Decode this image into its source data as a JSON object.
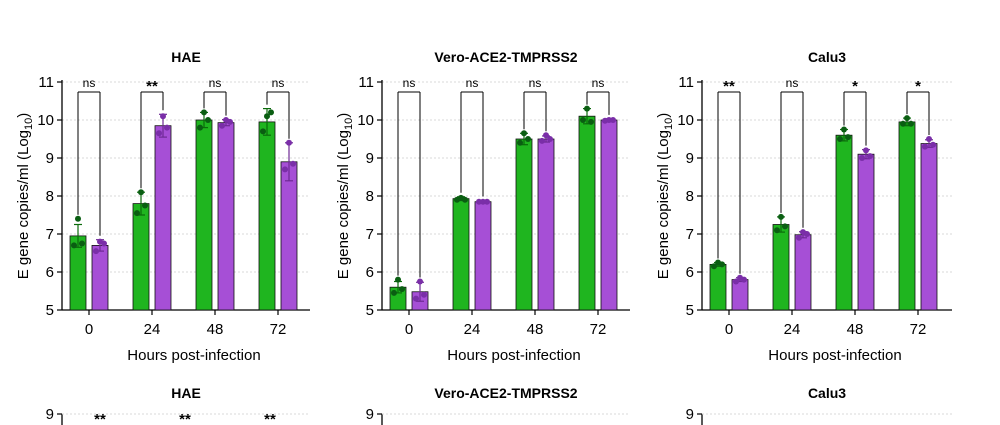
{
  "chart_data": [
    {
      "type": "bar",
      "title": "HAE",
      "xlabel": "Hours post-infection",
      "ylabel": "E gene copies/ml (Log10)",
      "ylim": [
        5,
        11
      ],
      "yticks": [
        "5",
        "6",
        "7",
        "8",
        "9",
        "10",
        "11"
      ],
      "grid": true,
      "categories": [
        "0",
        "24",
        "48",
        "72"
      ],
      "colors": [
        "#1fb51f",
        "#a64fd6"
      ],
      "series": [
        {
          "values": [
            6.95,
            7.8,
            10.0,
            9.95
          ],
          "errors": [
            0.3,
            0.3,
            0.2,
            0.35
          ],
          "points": [
            [
              6.7,
              7.4,
              6.75
            ],
            [
              7.55,
              8.1,
              7.75
            ],
            [
              9.8,
              10.2,
              10.0
            ],
            [
              9.7,
              10.1,
              10.2
            ]
          ]
        },
        {
          "values": [
            6.7,
            9.85,
            9.93,
            8.9
          ],
          "errors": [
            0.15,
            0.3,
            0.08,
            0.5
          ],
          "points": [
            [
              6.55,
              6.8,
              6.75
            ],
            [
              9.65,
              10.1,
              9.8
            ],
            [
              9.85,
              10.0,
              9.95
            ],
            [
              8.7,
              9.4,
              8.85
            ]
          ]
        }
      ],
      "significance": [
        "ns",
        "**",
        "ns",
        "ns"
      ]
    },
    {
      "type": "bar",
      "title": "Vero-ACE2-TMPRSS2",
      "xlabel": "Hours post-infection",
      "ylabel": "E gene copies/ml (Log10)",
      "ylim": [
        5,
        11
      ],
      "yticks": [
        "5",
        "6",
        "7",
        "8",
        "9",
        "10",
        "11"
      ],
      "grid": true,
      "categories": [
        "0",
        "24",
        "48",
        "72"
      ],
      "colors": [
        "#1fb51f",
        "#a64fd6"
      ],
      "series": [
        {
          "values": [
            5.6,
            7.93,
            9.5,
            10.1
          ],
          "errors": [
            0.15,
            0.05,
            0.15,
            0.2
          ],
          "points": [
            [
              5.45,
              5.8,
              5.55
            ],
            [
              7.9,
              7.95,
              7.9
            ],
            [
              9.4,
              9.65,
              9.5
            ],
            [
              10.0,
              10.3,
              9.95
            ]
          ]
        },
        {
          "values": [
            5.48,
            7.85,
            9.5,
            10.0
          ],
          "errors": [
            0.25,
            0.03,
            0.08,
            0.03
          ],
          "points": [
            [
              5.3,
              5.75,
              5.4
            ],
            [
              7.85,
              7.85,
              7.85
            ],
            [
              9.45,
              9.6,
              9.5
            ],
            [
              9.98,
              10.0,
              10.0
            ]
          ]
        }
      ],
      "significance": [
        "ns",
        "ns",
        "ns",
        "ns"
      ]
    },
    {
      "type": "bar",
      "title": "Calu3",
      "xlabel": "Hours post-infection",
      "ylabel": "E gene copies/ml (Log10)",
      "ylim": [
        5,
        11
      ],
      "yticks": [
        "5",
        "6",
        "7",
        "8",
        "9",
        "10",
        "11"
      ],
      "grid": true,
      "categories": [
        "0",
        "24",
        "48",
        "72"
      ],
      "colors": [
        "#1fb51f",
        "#a64fd6"
      ],
      "series": [
        {
          "values": [
            6.2,
            7.25,
            9.6,
            9.95
          ],
          "errors": [
            0.05,
            0.2,
            0.15,
            0.1
          ],
          "points": [
            [
              6.15,
              6.25,
              6.2
            ],
            [
              7.1,
              7.45,
              7.2
            ],
            [
              9.5,
              9.75,
              9.55
            ],
            [
              9.9,
              10.05,
              9.9
            ]
          ]
        },
        {
          "values": [
            5.8,
            6.98,
            9.1,
            9.38
          ],
          "errors": [
            0.05,
            0.08,
            0.12,
            0.1
          ],
          "points": [
            [
              5.75,
              5.85,
              5.8
            ],
            [
              6.9,
              7.05,
              7.0
            ],
            [
              9.0,
              9.2,
              9.05
            ],
            [
              9.3,
              9.5,
              9.35
            ]
          ]
        }
      ],
      "significance": [
        "**",
        "ns",
        "*",
        "*"
      ]
    }
  ],
  "lower_row": [
    {
      "title": "HAE",
      "ytick": "9",
      "significance": [
        "**",
        "**",
        "**"
      ]
    },
    {
      "title": "Vero-ACE2-TMPRSS2",
      "ytick": "9",
      "significance": []
    },
    {
      "title": "Calu3",
      "ytick": "9",
      "significance": []
    }
  ]
}
